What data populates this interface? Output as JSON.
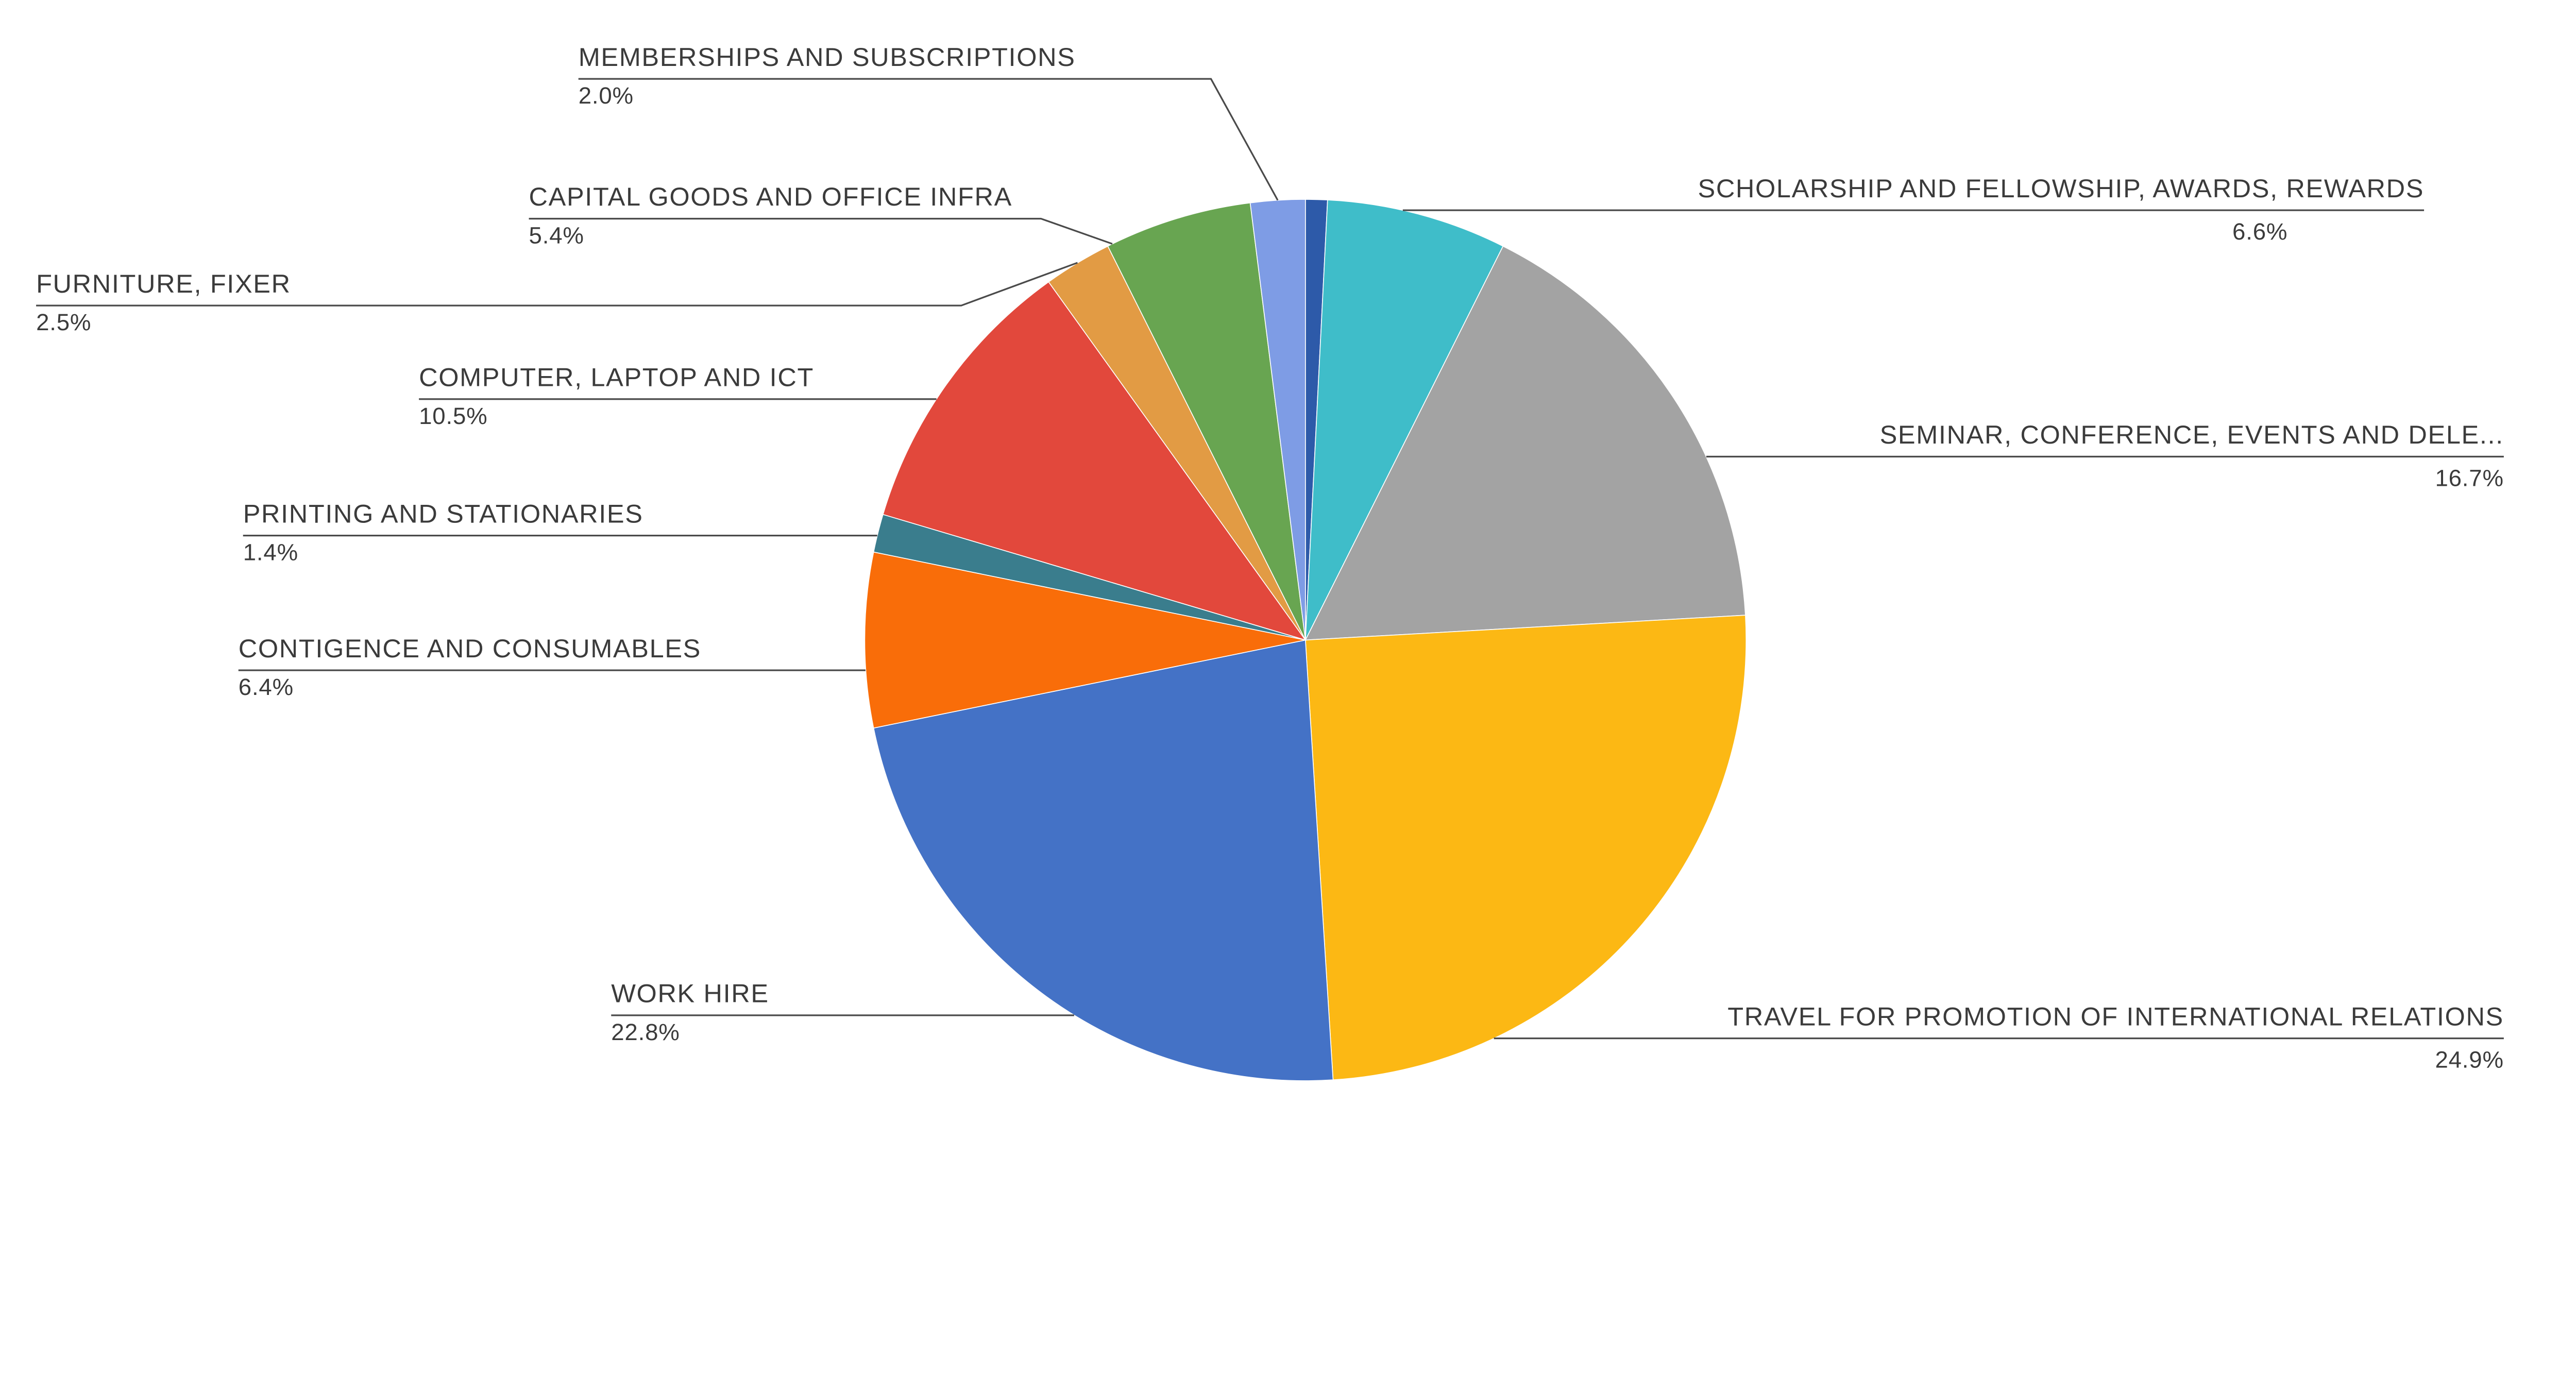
{
  "page": {
    "background_color": "#ffffff"
  },
  "chart_data": {
    "type": "pie",
    "title": "",
    "legend_position": "none",
    "labels_layout": "outside with leader lines, percentage under each label",
    "start_angle": "12 o'clock",
    "direction": "clockwise",
    "leader_line_color": "#4a4a4a",
    "text_color": "#3b3b3b",
    "slices": [
      {
        "label": "",
        "value": 0.8,
        "pct_label": "",
        "color": "#2d5aa9"
      },
      {
        "label": "SCHOLARSHIP AND FELLOWSHIP, AWARDS, REWARDS",
        "value": 6.6,
        "pct_label": "6.6%",
        "color": "#3fbdc9"
      },
      {
        "label": "SEMINAR, CONFERENCE, EVENTS AND DELE...",
        "value": 16.7,
        "pct_label": "16.7%",
        "color": "#a3a3a3"
      },
      {
        "label": "TRAVEL FOR PROMOTION OF INTERNATIONAL RELATIONS",
        "value": 24.9,
        "pct_label": "24.9%",
        "color": "#fcb814"
      },
      {
        "label": "WORK HIRE",
        "value": 22.8,
        "pct_label": "22.8%",
        "color": "#4472c6"
      },
      {
        "label": "CONTIGENCE AND CONSUMABLES",
        "value": 6.4,
        "pct_label": "6.4%",
        "color": "#f96d09"
      },
      {
        "label": "PRINTING AND STATIONARIES",
        "value": 1.4,
        "pct_label": "1.4%",
        "color": "#3a7d8d"
      },
      {
        "label": "COMPUTER, LAPTOP AND ICT",
        "value": 10.5,
        "pct_label": "10.5%",
        "color": "#e2483c"
      },
      {
        "label": "FURNITURE, FIXER",
        "value": 2.5,
        "pct_label": "2.5%",
        "color": "#e29b44"
      },
      {
        "label": "CAPITAL GOODS AND OFFICE INFRA",
        "value": 5.4,
        "pct_label": "5.4%",
        "color": "#68a551"
      },
      {
        "label": "MEMBERSHIPS AND SUBSCRIPTIONS",
        "value": 2.0,
        "pct_label": "2.0%",
        "color": "#7e9ce5"
      }
    ]
  }
}
